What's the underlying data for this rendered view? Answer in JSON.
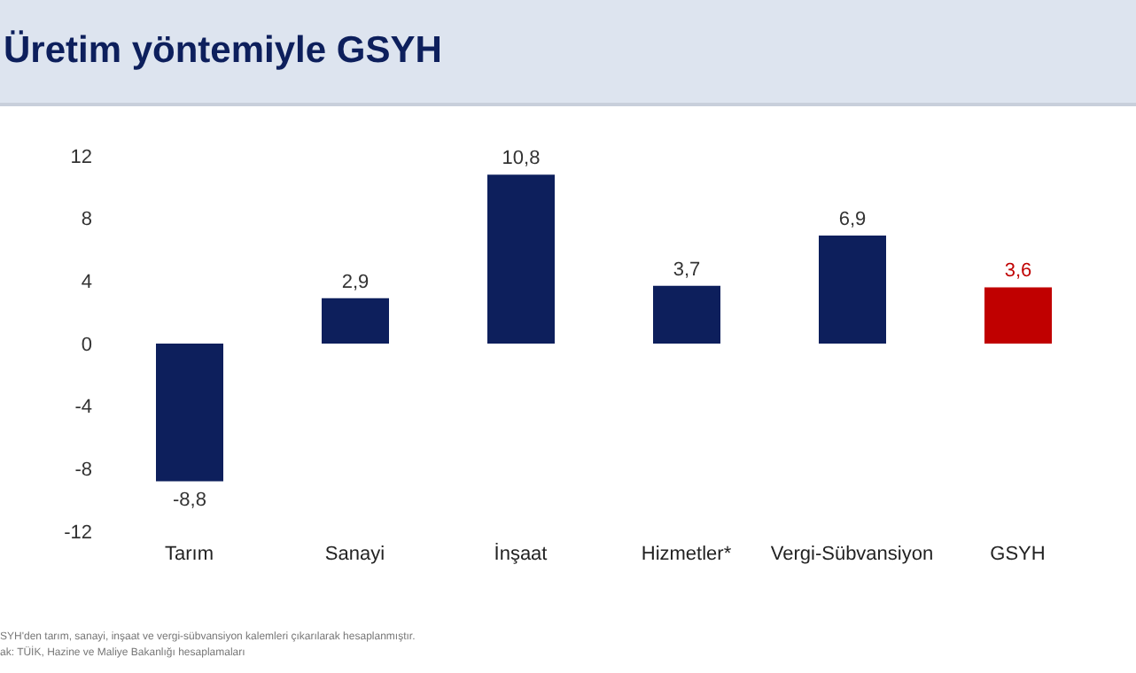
{
  "chart_data": {
    "type": "bar",
    "title": "Üretim yöntemiyle GSYH",
    "categories": [
      "Tarım",
      "Sanayi",
      "İnşaat",
      "Hizmetler*",
      "Vergi-Sübvansiyon",
      "GSYH"
    ],
    "values": [
      -8.8,
      2.9,
      10.8,
      3.7,
      6.9,
      3.6
    ],
    "colors": [
      "#0d1f5c",
      "#0d1f5c",
      "#0d1f5c",
      "#0d1f5c",
      "#0d1f5c",
      "#c00000"
    ],
    "value_labels": [
      "-8,8",
      "2,9",
      "10,8",
      "3,7",
      "6,9",
      "3,6"
    ],
    "ylim": [
      -12,
      12
    ],
    "yticks": [
      -12,
      -8,
      -4,
      0,
      4,
      8,
      12
    ],
    "grid": false,
    "legend": false,
    "annotations": [
      "SYH'den tarım, sanayi, inşaat ve vergi-sübvansiyon kalemleri çıkarılarak hesaplanmıştır.",
      "ak: TÜİK, Hazine ve Maliye Bakanlığı hesaplamaları"
    ]
  }
}
